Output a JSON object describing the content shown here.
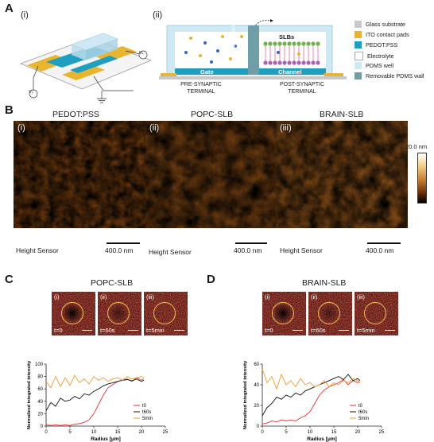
{
  "panels": {
    "A": {
      "letter": "A",
      "sub_i": "(i)",
      "sub_ii": "(ii)",
      "device_labels": {
        "vg": "V₂",
        "vd": "Vₓ"
      },
      "schematic": {
        "gate": "Gate",
        "channel": "Channel",
        "slbs": "SLBs",
        "wall": "Removable PDMS wall",
        "pre": "PRE-SYNAPTIC TERMINAL",
        "post": "POST-SYNAPTIC TERMINAL"
      },
      "legend": [
        {
          "label": "Glass substrate",
          "color": "#c9c9c9"
        },
        {
          "label": "ITO contact pads",
          "color": "#e9b530"
        },
        {
          "label": "PEDOT:PSS",
          "color": "#1f9fc0"
        },
        {
          "label": "Electrolyte",
          "color": "#ffffff"
        },
        {
          "label": "PDMS well",
          "color": "#cfe9f4"
        },
        {
          "label": "Removable PDMS wall",
          "color": "#6f9ea6"
        }
      ]
    },
    "B": {
      "letter": "B",
      "images": [
        {
          "roman": "(i)",
          "title": "PEDOT:PSS",
          "footer": "Height Sensor",
          "scale": "400.0 nm"
        },
        {
          "roman": "(ii)",
          "title": "POPC-SLB",
          "footer": "Height Sensor",
          "scale": "400.0 nm"
        },
        {
          "roman": "(iii)",
          "title": "BRAIN-SLB",
          "footer": "Height Sensor",
          "scale": "400.0 nm"
        }
      ],
      "colorbar_label": "20.0 nm"
    },
    "C": {
      "letter": "C",
      "title": "POPC-SLB",
      "romans": [
        "(i)",
        "(ii)",
        "(iii)"
      ],
      "times": [
        "t=0",
        "t=60s",
        "t=5min"
      ]
    },
    "D": {
      "letter": "D",
      "title": "BRAIN-SLB",
      "romans": [
        "(i)",
        "(ii)",
        "(iii)"
      ],
      "times": [
        "t=0",
        "t=60s",
        "t=5min"
      ]
    }
  },
  "chart_data": [
    {
      "type": "line",
      "panel": "C",
      "xlabel": "Radius [μm]",
      "ylabel": "Normalized integrated intensity",
      "xlim": [
        0,
        25
      ],
      "ylim": [
        0,
        100
      ],
      "xticks": [
        0,
        5,
        10,
        15,
        20,
        25
      ],
      "yticks": [
        0,
        20,
        40,
        60,
        80,
        100
      ],
      "legend_position": "bottom-right",
      "series": [
        {
          "name": "t0",
          "color": "#e8303a",
          "x": [
            0,
            1,
            2,
            3,
            4,
            5,
            6,
            7,
            8,
            9,
            10,
            11,
            12,
            13,
            14,
            15,
            16,
            17,
            18,
            19,
            20,
            20.5
          ],
          "y": [
            2,
            1,
            2,
            1,
            2,
            1,
            3,
            4,
            6,
            10,
            20,
            35,
            50,
            62,
            67,
            72,
            74,
            76,
            72,
            78,
            74,
            76
          ]
        },
        {
          "name": "t60s",
          "color": "#111111",
          "x": [
            0,
            1,
            2,
            3,
            4,
            5,
            6,
            7,
            8,
            9,
            10,
            11,
            12,
            13,
            14,
            15,
            16,
            17,
            18,
            19,
            20,
            20.5
          ],
          "y": [
            25,
            38,
            32,
            45,
            40,
            42,
            48,
            44,
            52,
            50,
            56,
            60,
            65,
            68,
            70,
            72,
            74,
            75,
            73,
            76,
            72,
            74
          ]
        },
        {
          "name": "5min",
          "color": "#f39a2a",
          "x": [
            0,
            1,
            2,
            3,
            4,
            5,
            6,
            7,
            8,
            9,
            10,
            11,
            12,
            13,
            14,
            15,
            16,
            17,
            18,
            19,
            20,
            20.5
          ],
          "y": [
            72,
            62,
            80,
            64,
            78,
            66,
            82,
            70,
            76,
            68,
            80,
            74,
            78,
            72,
            76,
            78,
            74,
            80,
            76,
            78,
            80,
            78
          ]
        }
      ]
    },
    {
      "type": "line",
      "panel": "D",
      "xlabel": "Radius [μm]",
      "ylabel": "Normalized integrated intensity",
      "xlim": [
        0,
        25
      ],
      "ylim": [
        0,
        60
      ],
      "xticks": [
        0,
        5,
        10,
        15,
        20,
        25
      ],
      "yticks": [
        0,
        20,
        40,
        60
      ],
      "legend_position": "bottom-right",
      "series": [
        {
          "name": "t0",
          "color": "#e8303a",
          "x": [
            0,
            1,
            2,
            3,
            4,
            5,
            6,
            7,
            8,
            9,
            10,
            11,
            12,
            13,
            14,
            15,
            16,
            17,
            18,
            19,
            20,
            20.5
          ],
          "y": [
            2,
            3,
            5,
            4,
            6,
            5,
            6,
            5,
            8,
            10,
            14,
            22,
            30,
            35,
            38,
            40,
            42,
            45,
            40,
            44,
            42,
            43
          ]
        },
        {
          "name": "t60s",
          "color": "#111111",
          "x": [
            0,
            1,
            2,
            3,
            4,
            5,
            6,
            7,
            8,
            9,
            10,
            11,
            12,
            13,
            14,
            15,
            16,
            17,
            18,
            19,
            20,
            20.5
          ],
          "y": [
            10,
            18,
            22,
            28,
            26,
            30,
            28,
            32,
            30,
            34,
            36,
            38,
            40,
            42,
            44,
            46,
            48,
            45,
            50,
            44,
            46,
            44
          ]
        },
        {
          "name": "5min",
          "color": "#f39a2a",
          "x": [
            0,
            1,
            2,
            3,
            4,
            5,
            6,
            7,
            8,
            9,
            10,
            11,
            12,
            13,
            14,
            15,
            16,
            17,
            18,
            19,
            20,
            20.5
          ],
          "y": [
            55,
            42,
            48,
            36,
            50,
            40,
            44,
            38,
            46,
            40,
            42,
            38,
            40,
            44,
            38,
            42,
            40,
            44,
            42,
            46,
            44,
            42
          ]
        }
      ]
    }
  ]
}
